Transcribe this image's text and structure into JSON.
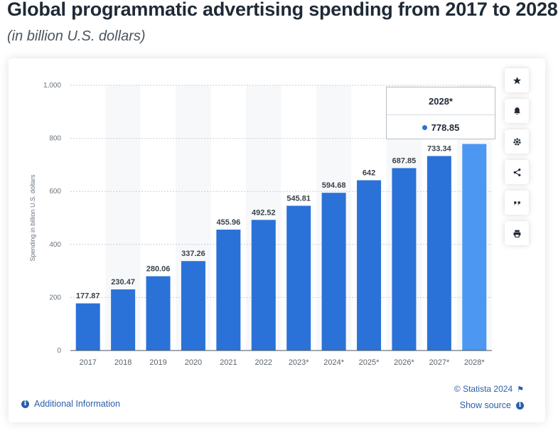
{
  "header": {
    "title": "Global programmatic advertising spending from 2017 to 2028",
    "subtitle": "(in billion U.S. dollars)"
  },
  "chart_data": {
    "type": "bar",
    "categories": [
      "2017",
      "2018",
      "2019",
      "2020",
      "2021",
      "2022",
      "2023*",
      "2024*",
      "2025*",
      "2026*",
      "2027*",
      "2028*"
    ],
    "values": [
      177.87,
      230.47,
      280.06,
      337.26,
      455.96,
      492.52,
      545.81,
      594.68,
      642,
      687.85,
      733.34,
      778.85
    ],
    "value_labels": [
      "177.87",
      "230.47",
      "280.06",
      "337.26",
      "455.96",
      "492.52",
      "545.81",
      "594.68",
      "642",
      "687.85",
      "733.34",
      ""
    ],
    "ylabel": "Spending in billion U.S. dollars",
    "xlabel": "",
    "ylim": [
      0,
      1000
    ],
    "yticks": [
      0,
      200,
      400,
      600,
      800,
      1000
    ],
    "ytick_labels": [
      "0",
      "200",
      "400",
      "600",
      "800",
      "1,000"
    ],
    "grid": true,
    "colors": {
      "bar": "#2a72d8",
      "highlight": "#4b97f2"
    },
    "highlighted_index": 11
  },
  "tooltip": {
    "category": "2028*",
    "value": "778.85"
  },
  "footer": {
    "additional_info": "Additional Information",
    "credits": "© Statista 2024",
    "show_source": "Show source"
  },
  "toolbar": {
    "icons": [
      "star-icon",
      "bell-icon",
      "gear-icon",
      "share-icon",
      "quote-icon",
      "print-icon"
    ]
  }
}
